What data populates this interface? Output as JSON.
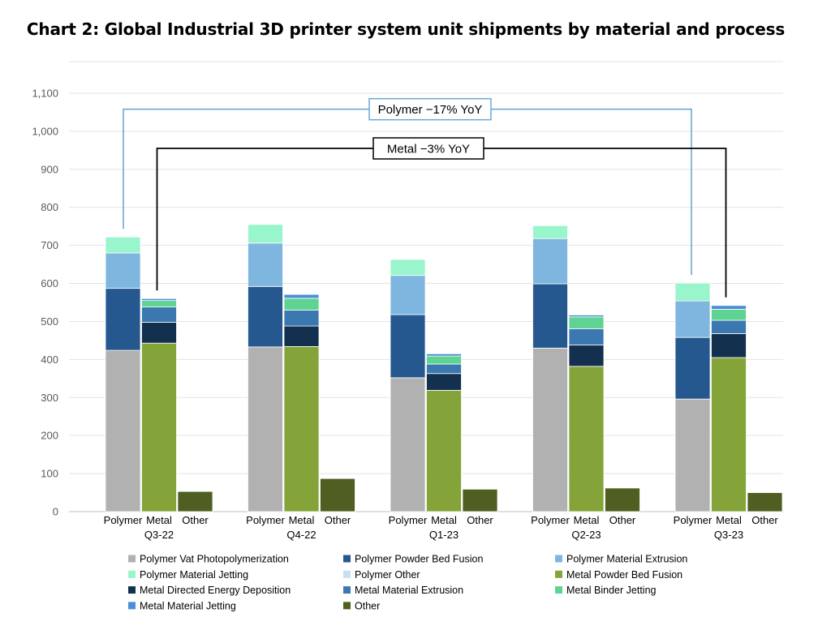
{
  "chart_data": {
    "type": "bar",
    "title": "Chart 2: Global Industrial 3D printer system unit shipments by material and process",
    "xlabel": "",
    "ylabel": "",
    "ylim": [
      0,
      1100
    ],
    "yticks": [
      0,
      100,
      200,
      300,
      400,
      500,
      600,
      700,
      800,
      900,
      1000,
      1100
    ],
    "grid": true,
    "legend_position": "bottom",
    "quarters": [
      "Q3-22",
      "Q4-22",
      "Q1-23",
      "Q2-23",
      "Q3-23"
    ],
    "bar_labels": [
      "Polymer",
      "Metal",
      "Other"
    ],
    "series": [
      {
        "name": "Polymer Vat Photopolymerization",
        "bar": "Polymer",
        "color": "#b1b1b1",
        "values": [
          424,
          433,
          352,
          430,
          296
        ]
      },
      {
        "name": "Polymer Powder Bed Fusion",
        "bar": "Polymer",
        "color": "#25588f",
        "values": [
          163,
          159,
          166,
          169,
          162
        ]
      },
      {
        "name": "Polymer Material Extrusion",
        "bar": "Polymer",
        "color": "#7eb6e0",
        "values": [
          93,
          114,
          103,
          119,
          96
        ]
      },
      {
        "name": "Polymer Material Jetting",
        "bar": "Polymer",
        "color": "#98f5cc",
        "values": [
          42,
          49,
          42,
          34,
          47
        ]
      },
      {
        "name": "Polymer Other",
        "bar": "Polymer",
        "color": "#c5dff3",
        "values": [
          0,
          0,
          0,
          0,
          0
        ]
      },
      {
        "name": "Metal Powder Bed Fusion",
        "bar": "Metal",
        "color": "#84a43a",
        "values": [
          443,
          434,
          319,
          382,
          405
        ]
      },
      {
        "name": "Metal Directed Energy Deposition",
        "bar": "Metal",
        "color": "#13304f",
        "values": [
          55,
          54,
          44,
          56,
          63
        ]
      },
      {
        "name": "Metal Material Extrusion",
        "bar": "Metal",
        "color": "#3a78af",
        "values": [
          40,
          42,
          25,
          43,
          35
        ]
      },
      {
        "name": "Metal Binder Jetting",
        "bar": "Metal",
        "color": "#5fd492",
        "values": [
          17,
          31,
          21,
          31,
          29
        ]
      },
      {
        "name": "Metal Material Jetting",
        "bar": "Metal",
        "color": "#4a8fd6",
        "values": [
          5,
          10,
          6,
          5,
          10
        ]
      },
      {
        "name": "Other",
        "bar": "Other",
        "color": "#4f5e21",
        "values": [
          53,
          87,
          59,
          62,
          50
        ]
      }
    ],
    "annotations": [
      {
        "text": "Polymer −17% YoY",
        "from_quarter": "Q3-22",
        "to_quarter": "Q3-23",
        "bar": "Polymer",
        "level": 1058,
        "border": "#6aa8d8"
      },
      {
        "text": "Metal −3% YoY",
        "from_quarter": "Q3-22",
        "to_quarter": "Q3-23",
        "bar": "Metal",
        "level": 955,
        "border": "#000000"
      }
    ]
  }
}
